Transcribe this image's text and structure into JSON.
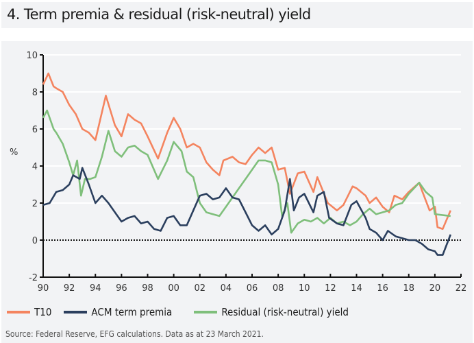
{
  "title": "4. Term premia & residual (risk-neutral) yield",
  "source": "Source: Federal Reserve, EFG calculations. Data as at 23 March 2021.",
  "chart_data": {
    "type": "line",
    "title": "4. Term premia & residual (risk-neutral) yield",
    "ylabel": "%",
    "xlabel": "",
    "xlim": [
      1990,
      2022
    ],
    "ylim": [
      -2,
      10
    ],
    "x_ticks": [
      "90",
      "92",
      "94",
      "96",
      "98",
      "00",
      "02",
      "04",
      "06",
      "08",
      "10",
      "12",
      "14",
      "16",
      "18",
      "20",
      "22"
    ],
    "y_ticks": [
      "-2",
      "0",
      "2",
      "4",
      "6",
      "8",
      "10"
    ],
    "grid": true,
    "zero_line": "dotted",
    "legend_position": "bottom",
    "series": [
      {
        "name": "T10",
        "color": "#f4845f",
        "points": [
          [
            1990,
            8.4
          ],
          [
            1990.4,
            9.0
          ],
          [
            1990.8,
            8.3
          ],
          [
            1991,
            8.2
          ],
          [
            1991.5,
            8.0
          ],
          [
            1992,
            7.3
          ],
          [
            1992.5,
            6.8
          ],
          [
            1993,
            6.0
          ],
          [
            1993.5,
            5.8
          ],
          [
            1994,
            5.4
          ],
          [
            1994.8,
            7.8
          ],
          [
            1995.5,
            6.2
          ],
          [
            1996,
            5.6
          ],
          [
            1996.5,
            6.8
          ],
          [
            1997,
            6.5
          ],
          [
            1997.5,
            6.3
          ],
          [
            1998,
            5.6
          ],
          [
            1998.8,
            4.4
          ],
          [
            1999.5,
            5.8
          ],
          [
            2000,
            6.6
          ],
          [
            2000.5,
            6.0
          ],
          [
            2001,
            5.0
          ],
          [
            2001.5,
            5.2
          ],
          [
            2002,
            5.0
          ],
          [
            2002.5,
            4.2
          ],
          [
            2003,
            3.8
          ],
          [
            2003.5,
            3.5
          ],
          [
            2003.8,
            4.3
          ],
          [
            2004.5,
            4.5
          ],
          [
            2005,
            4.2
          ],
          [
            2005.5,
            4.1
          ],
          [
            2006,
            4.6
          ],
          [
            2006.5,
            5.0
          ],
          [
            2007,
            4.7
          ],
          [
            2007.5,
            5.0
          ],
          [
            2008,
            3.8
          ],
          [
            2008.5,
            3.9
          ],
          [
            2008.9,
            2.5
          ],
          [
            2009.5,
            3.6
          ],
          [
            2010,
            3.7
          ],
          [
            2010.7,
            2.6
          ],
          [
            2011,
            3.4
          ],
          [
            2011.8,
            2.0
          ],
          [
            2012.5,
            1.6
          ],
          [
            2013,
            1.9
          ],
          [
            2013.7,
            2.9
          ],
          [
            2014,
            2.8
          ],
          [
            2014.7,
            2.4
          ],
          [
            2015,
            2.0
          ],
          [
            2015.5,
            2.3
          ],
          [
            2016,
            1.8
          ],
          [
            2016.5,
            1.5
          ],
          [
            2016.9,
            2.4
          ],
          [
            2017.5,
            2.2
          ],
          [
            2018,
            2.6
          ],
          [
            2018.8,
            3.1
          ],
          [
            2019,
            2.7
          ],
          [
            2019.6,
            1.6
          ],
          [
            2020,
            1.8
          ],
          [
            2020.2,
            0.7
          ],
          [
            2020.6,
            0.6
          ],
          [
            2021.2,
            1.6
          ]
        ]
      },
      {
        "name": "ACM term premia",
        "color": "#2b3f5e",
        "points": [
          [
            1990,
            1.9
          ],
          [
            1990.5,
            2.0
          ],
          [
            1991,
            2.6
          ],
          [
            1991.5,
            2.7
          ],
          [
            1992,
            3.0
          ],
          [
            1992.3,
            3.5
          ],
          [
            1992.8,
            3.3
          ],
          [
            1993,
            3.9
          ],
          [
            1993.5,
            3.0
          ],
          [
            1994,
            2.0
          ],
          [
            1994.5,
            2.4
          ],
          [
            1995,
            2.0
          ],
          [
            1995.5,
            1.5
          ],
          [
            1996,
            1.0
          ],
          [
            1996.5,
            1.2
          ],
          [
            1997,
            1.3
          ],
          [
            1997.5,
            0.9
          ],
          [
            1998,
            1.0
          ],
          [
            1998.5,
            0.6
          ],
          [
            1999,
            0.5
          ],
          [
            1999.5,
            1.2
          ],
          [
            2000,
            1.3
          ],
          [
            2000.5,
            0.8
          ],
          [
            2001,
            0.8
          ],
          [
            2001.5,
            1.6
          ],
          [
            2002,
            2.4
          ],
          [
            2002.5,
            2.5
          ],
          [
            2003,
            2.2
          ],
          [
            2003.5,
            2.3
          ],
          [
            2004,
            2.8
          ],
          [
            2004.5,
            2.3
          ],
          [
            2005,
            2.2
          ],
          [
            2005.5,
            1.5
          ],
          [
            2006,
            0.8
          ],
          [
            2006.5,
            0.5
          ],
          [
            2007,
            0.8
          ],
          [
            2007.5,
            0.3
          ],
          [
            2008,
            0.6
          ],
          [
            2008.5,
            1.6
          ],
          [
            2008.9,
            3.3
          ],
          [
            2009.2,
            1.6
          ],
          [
            2009.6,
            2.3
          ],
          [
            2010,
            2.5
          ],
          [
            2010.7,
            1.5
          ],
          [
            2011,
            2.4
          ],
          [
            2011.5,
            2.6
          ],
          [
            2011.9,
            1.2
          ],
          [
            2012.5,
            0.9
          ],
          [
            2013,
            0.8
          ],
          [
            2013.6,
            1.9
          ],
          [
            2014,
            2.1
          ],
          [
            2014.7,
            1.2
          ],
          [
            2015,
            0.6
          ],
          [
            2015.5,
            0.4
          ],
          [
            2016,
            0.0
          ],
          [
            2016.4,
            0.5
          ],
          [
            2017,
            0.2
          ],
          [
            2017.5,
            0.1
          ],
          [
            2018,
            0.0
          ],
          [
            2018.5,
            0.0
          ],
          [
            2019,
            -0.2
          ],
          [
            2019.5,
            -0.5
          ],
          [
            2020,
            -0.6
          ],
          [
            2020.2,
            -0.8
          ],
          [
            2020.6,
            -0.8
          ],
          [
            2021.2,
            0.3
          ]
        ]
      },
      {
        "name": "Residual (risk-neutral) yield",
        "color": "#7fbf7b",
        "points": [
          [
            1990,
            6.6
          ],
          [
            1990.3,
            7.0
          ],
          [
            1990.8,
            6.0
          ],
          [
            1991,
            5.8
          ],
          [
            1991.5,
            5.2
          ],
          [
            1992,
            4.2
          ],
          [
            1992.3,
            3.5
          ],
          [
            1992.6,
            4.3
          ],
          [
            1992.9,
            2.4
          ],
          [
            1993.2,
            3.3
          ],
          [
            1993.6,
            3.3
          ],
          [
            1994,
            3.4
          ],
          [
            1994.5,
            4.5
          ],
          [
            1995,
            5.9
          ],
          [
            1995.5,
            4.8
          ],
          [
            1996,
            4.5
          ],
          [
            1996.5,
            5.0
          ],
          [
            1997,
            5.1
          ],
          [
            1997.5,
            4.8
          ],
          [
            1998,
            4.6
          ],
          [
            1998.8,
            3.3
          ],
          [
            1999.5,
            4.3
          ],
          [
            2000,
            5.3
          ],
          [
            2000.6,
            4.8
          ],
          [
            2001,
            3.7
          ],
          [
            2001.5,
            3.4
          ],
          [
            2002,
            2.0
          ],
          [
            2002.5,
            1.5
          ],
          [
            2003,
            1.4
          ],
          [
            2003.5,
            1.3
          ],
          [
            2004,
            1.8
          ],
          [
            2004.5,
            2.3
          ],
          [
            2005,
            2.8
          ],
          [
            2005.5,
            3.3
          ],
          [
            2006,
            3.8
          ],
          [
            2006.5,
            4.3
          ],
          [
            2007,
            4.3
          ],
          [
            2007.5,
            4.2
          ],
          [
            2008,
            3.0
          ],
          [
            2008.3,
            1.3
          ],
          [
            2008.7,
            2.0
          ],
          [
            2009,
            0.4
          ],
          [
            2009.5,
            0.9
          ],
          [
            2010,
            1.1
          ],
          [
            2010.5,
            1.0
          ],
          [
            2011,
            1.2
          ],
          [
            2011.5,
            0.9
          ],
          [
            2012,
            1.2
          ],
          [
            2012.5,
            0.9
          ],
          [
            2013,
            1.0
          ],
          [
            2013.5,
            0.8
          ],
          [
            2014,
            1.0
          ],
          [
            2014.5,
            1.4
          ],
          [
            2015,
            1.7
          ],
          [
            2015.5,
            1.4
          ],
          [
            2016,
            1.5
          ],
          [
            2016.5,
            1.6
          ],
          [
            2017,
            1.9
          ],
          [
            2017.5,
            2.0
          ],
          [
            2018,
            2.5
          ],
          [
            2018.8,
            3.1
          ],
          [
            2019.3,
            2.6
          ],
          [
            2019.8,
            2.3
          ],
          [
            2020,
            1.4
          ],
          [
            2021.2,
            1.3
          ]
        ]
      }
    ]
  }
}
